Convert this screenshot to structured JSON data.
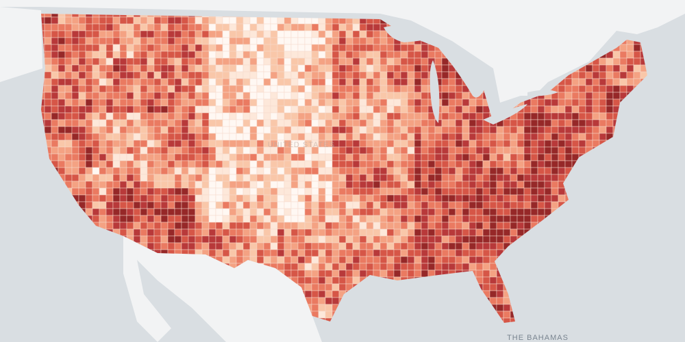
{
  "labels": {
    "country": "UNITED STATES",
    "bahamas": "THE BAHAMAS"
  }
}
